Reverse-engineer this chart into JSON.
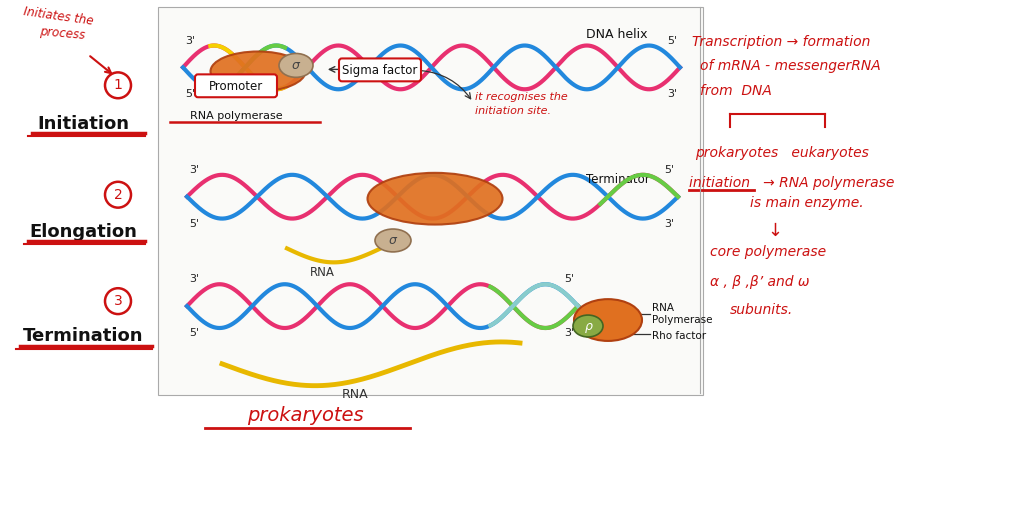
{
  "bg_color": "#ffffff",
  "handwritten_color": "#cc1111",
  "dna_pink": "#e83070",
  "dna_blue": "#2288dd",
  "dna_yellow": "#f5d000",
  "dna_green": "#66cc44",
  "rna_yellow": "#e8b800",
  "enzyme_orange": "#e07020",
  "sigma_tan": "#c8b090",
  "rho_green": "#88aa44",
  "annotations": {
    "initiates1": "Initiates the",
    "initiates2": "process",
    "circle1": "1",
    "circle2": "2",
    "circle3": "3",
    "initiation_label": "Initiation",
    "elongation_label": "Elongation",
    "termination_label": "Termination",
    "promoter": "Promoter",
    "rna_polymerase": "RNA polymerase",
    "sigma_factor": "Sigma factor",
    "dna_helix": "DNA helix",
    "rna_label1": "RNA",
    "terminator": "Terminator",
    "rna_label2": "RNA",
    "rna_polymerase2": "RNA\nPolymerase",
    "rho_factor": "Rho factor",
    "prokaryotes": "prokaryotes",
    "it_recognises1": "it recognises the",
    "it_recognises2": "initiation site.",
    "right1": "Transcription → formation",
    "right2": "of mRNA - messengerRNA",
    "right3": "from  DNA",
    "right4": "prokaryotes   eukaryotes",
    "right5": "initiation   → RNA polymerase",
    "right6": "is main enzyme.",
    "right7": "↓",
    "right8": "core polymerase",
    "right9": "α , β ,β’ and ω",
    "right10": "subunits."
  }
}
